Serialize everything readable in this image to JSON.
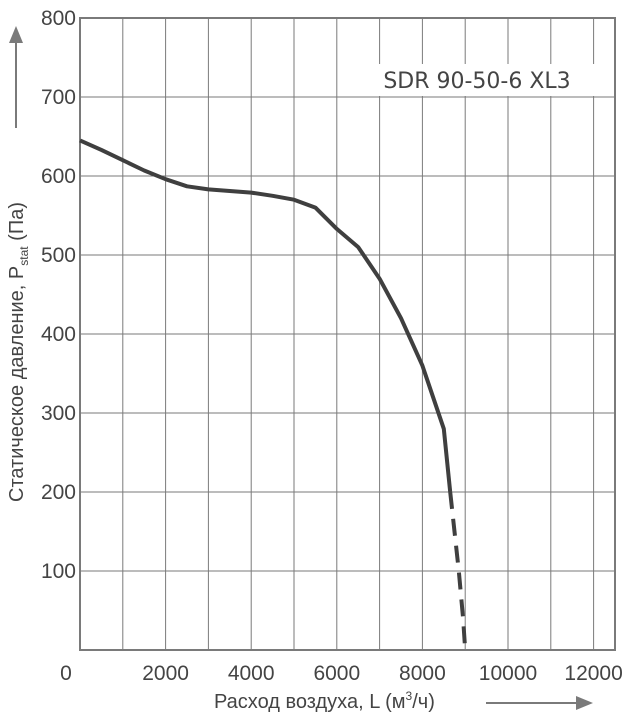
{
  "chart_data": {
    "type": "line",
    "title": "",
    "model_label": "SDR 90-50-6 XL3",
    "xlabel_text": "Расход воздуха, L (м",
    "xlabel_sup": "3",
    "xlabel_tail": "/ч)",
    "ylabel_text": "Статическое давление, P",
    "ylabel_sub": "stat",
    "ylabel_tail": " (Па)",
    "xlim": [
      0,
      12500
    ],
    "ylim": [
      0,
      800
    ],
    "x_ticks": [
      0,
      2000,
      4000,
      6000,
      8000,
      10000,
      12000
    ],
    "y_ticks": [
      100,
      200,
      300,
      400,
      500,
      600,
      700,
      800
    ],
    "grid": true,
    "colors": {
      "curve": "#3f3f3f",
      "grid": "#7a7a7a",
      "text": "#444444",
      "arrow": "#7a7a7a"
    },
    "series": [
      {
        "style": "solid",
        "x": [
          0,
          500,
          1000,
          1500,
          2000,
          2500,
          3000,
          3500,
          4000,
          4500,
          5000,
          5500,
          6000,
          6500,
          7000,
          7500,
          8000,
          8500,
          8650
        ],
        "y": [
          645,
          633,
          620,
          607,
          596,
          587,
          583,
          581,
          579,
          575,
          570,
          560,
          533,
          510,
          470,
          420,
          360,
          280,
          200
        ]
      },
      {
        "style": "dashed",
        "x": [
          8650,
          8750,
          8850,
          8950,
          9000
        ],
        "y": [
          200,
          150,
          100,
          40,
          0
        ]
      }
    ]
  }
}
